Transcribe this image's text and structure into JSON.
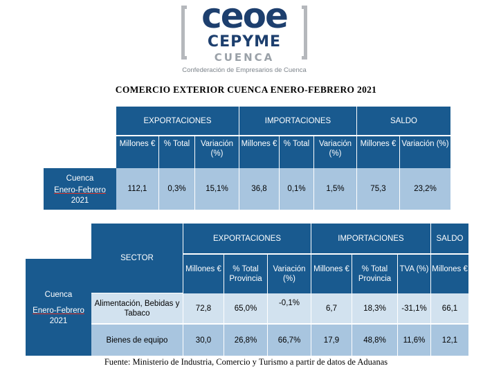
{
  "logo": {
    "ceoe": "ceoe",
    "cepyme": "CEPYME",
    "cuenca": "CUENCA",
    "subtitle": "Confederación de Empresarios de Cuenca",
    "colors": {
      "navy": "#1d3f6e",
      "grey": "#b5b8bc"
    }
  },
  "title": "COMERCIO  EXTERIOR  CUENCA  ENERO-FEBRERO  2021",
  "table1": {
    "groups": [
      "EXPORTACIONES",
      "IMPORTACIONES",
      "SALDO"
    ],
    "columns": [
      "Millones €",
      "% Total",
      "Variación (%)",
      "Millones €",
      "% Total",
      "Variación (%)",
      "Millones €",
      "Variación (%)"
    ],
    "row_label": {
      "line1": "Cuenca",
      "line2": "Enero-Febrero",
      "line3": "2021"
    },
    "values": [
      "112,1",
      "0,3%",
      "15,1%",
      "36,8",
      "0,1%",
      "1,5%",
      "75,3",
      "23,2%"
    ]
  },
  "table2": {
    "sector_header": "SECTOR",
    "groups": [
      "EXPORTACIONES",
      "IMPORTACIONES",
      "SALDO"
    ],
    "columns": [
      "Millones €",
      "% Total Provincia",
      "Variación (%)",
      "Millones €",
      "% Total Provincia",
      "TVA (%)",
      "Millones €"
    ],
    "row_label": {
      "line1": "Cuenca",
      "line2": "Enero-Febrero",
      "line3": "2021"
    },
    "rows": [
      {
        "sector": "Alimentación, Bebidas y Tabaco",
        "values": [
          "72,8",
          "65,0%",
          "-0,1%",
          "6,7",
          "18,3%",
          "-31,1%",
          "66,1"
        ]
      },
      {
        "sector": "Bienes de equipo",
        "values": [
          "30,0",
          "26,8%",
          "66,7%",
          "17,9",
          "48,8%",
          "11,6%",
          "12,1"
        ]
      }
    ]
  },
  "source": "Fuente: Ministerio de Industria, Comercio y Turismo a partir de datos de Aduanas",
  "colors": {
    "header_blue": "#195a8f",
    "cell_blue": "#a8c5df",
    "cell_light": "#d2e2ef"
  }
}
